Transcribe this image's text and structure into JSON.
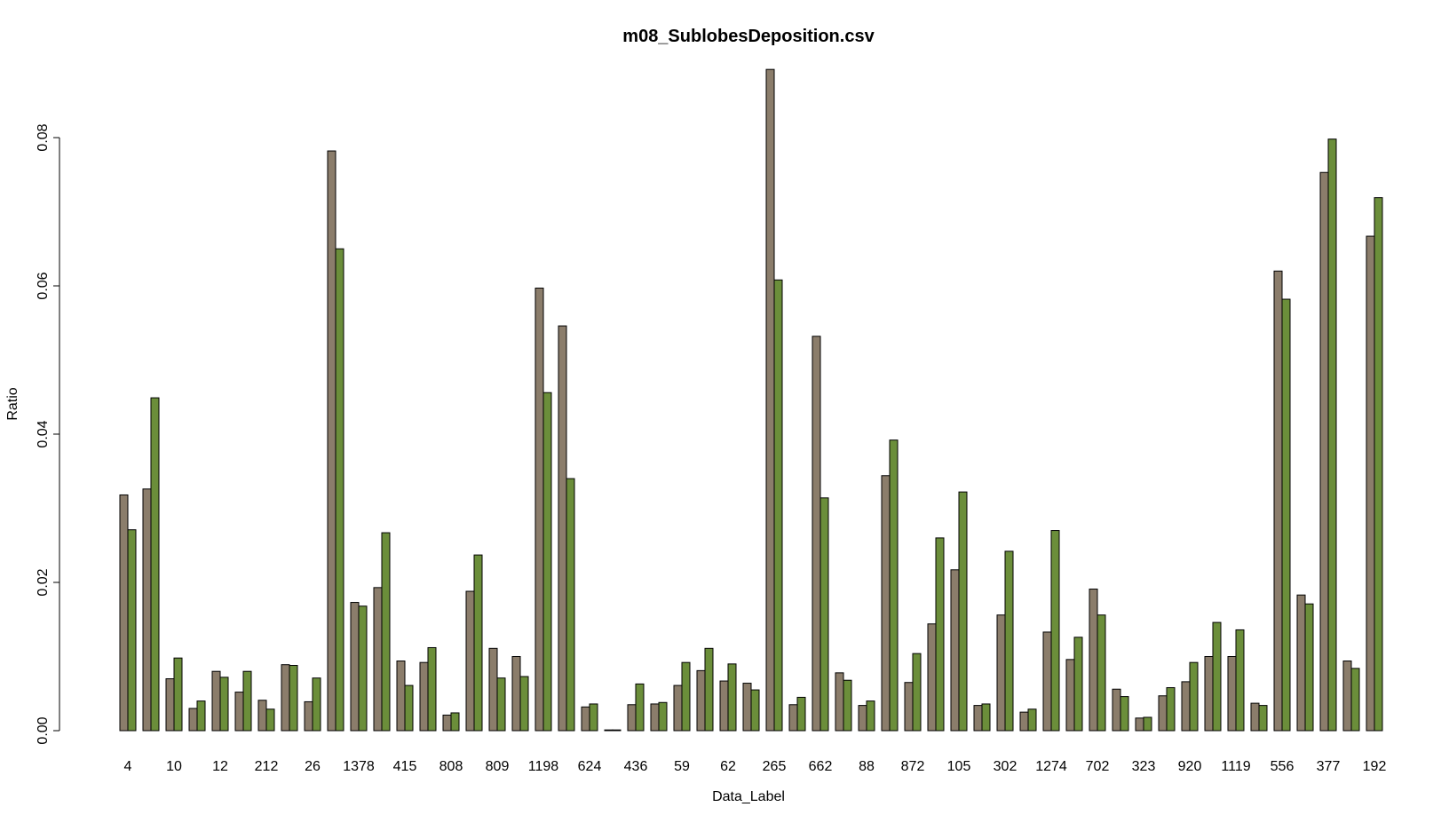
{
  "chart_data": {
    "type": "bar",
    "title": "m08_SublobesDeposition.csv",
    "xlabel": "Data_Label",
    "ylabel": "Ratio",
    "ylim": [
      0,
      0.09
    ],
    "yticks": [
      "0.00",
      "0.02",
      "0.04",
      "0.06",
      "0.08"
    ],
    "ytick_values": [
      0,
      0.02,
      0.04,
      0.06,
      0.08
    ],
    "grid": false,
    "legend": "none",
    "categories": [
      "4",
      "",
      "10",
      "",
      "12",
      "",
      "212",
      "",
      "26",
      "",
      "1378",
      "",
      "415",
      "",
      "808",
      "",
      "809",
      "",
      "1198",
      "",
      "624",
      "",
      "436",
      "",
      "59",
      "",
      "62",
      "",
      "265",
      "",
      "662",
      "",
      "88",
      "",
      "872",
      "",
      "105",
      "",
      "302",
      "",
      "1274",
      "",
      "702",
      "",
      "323",
      "",
      "920",
      "",
      "1119",
      "",
      "556",
      "",
      "377",
      "",
      "192"
    ],
    "series": [
      {
        "color": "#8b7d6b",
        "values": [
          0.0318,
          0.0326,
          0.007,
          0.003,
          0.008,
          0.0052,
          0.0041,
          0.0089,
          0.0039,
          0.0782,
          0.0173,
          0.0193,
          0.0094,
          0.0092,
          0.0021,
          0.0188,
          0.0111,
          0.01,
          0.0597,
          0.0546,
          0.0032,
          0.0001,
          0.0035,
          0.0036,
          0.0061,
          0.0081,
          0.0067,
          0.0064,
          0.0892,
          0.0035,
          0.0532,
          0.0078,
          0.0034,
          0.0344,
          0.0065,
          0.0144,
          0.0217,
          0.0034,
          0.0156,
          0.0025,
          0.0133,
          0.0096,
          0.0191,
          0.0056,
          0.0017,
          0.0047,
          0.0066,
          0.01,
          0.01,
          0.0037,
          0.062,
          0.0183,
          0.0753,
          0.0094,
          0.0667
        ]
      },
      {
        "color": "#6b8e3a",
        "values": [
          0.0271,
          0.0449,
          0.0098,
          0.004,
          0.0072,
          0.008,
          0.0029,
          0.0088,
          0.0071,
          0.065,
          0.0168,
          0.0267,
          0.0061,
          0.0112,
          0.0024,
          0.0237,
          0.0071,
          0.0073,
          0.0456,
          0.034,
          0.0036,
          0.0001,
          0.0063,
          0.0038,
          0.0092,
          0.0111,
          0.009,
          0.0055,
          0.0608,
          0.0045,
          0.0314,
          0.0068,
          0.004,
          0.0392,
          0.0104,
          0.026,
          0.0322,
          0.0036,
          0.0242,
          0.0029,
          0.027,
          0.0126,
          0.0156,
          0.0046,
          0.0018,
          0.0058,
          0.0092,
          0.0146,
          0.0136,
          0.0034,
          0.0582,
          0.0171,
          0.0798,
          0.0084,
          0.0719
        ]
      }
    ]
  }
}
